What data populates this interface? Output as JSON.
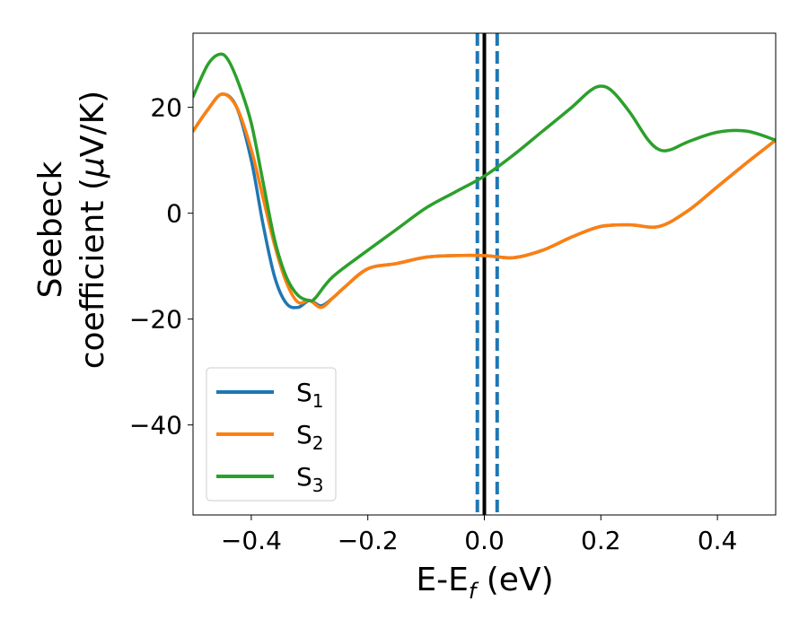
{
  "chart_data": {
    "type": "line",
    "xlabel": "E-E",
    "xlabel_sub": "f",
    "xlabel_unit": " (eV)",
    "ylabel_line1": "Seebeck",
    "ylabel_line2_prefix": "coefficient  (",
    "ylabel_mu": "μ",
    "ylabel_line2_suffix": "V/K)",
    "xlim": [
      -0.5,
      0.5
    ],
    "ylim": [
      -57,
      34
    ],
    "xticks": [
      -0.4,
      -0.2,
      0.0,
      0.2,
      0.4
    ],
    "xtick_labels": [
      "−0.4",
      "−0.2",
      "0.0",
      "0.2",
      "0.4"
    ],
    "yticks": [
      -40,
      -20,
      0,
      20
    ],
    "ytick_labels": [
      "−40",
      "−20",
      "0",
      "20"
    ],
    "grid": false,
    "legend_position": "lower-left",
    "vertical_lines": [
      {
        "x": 0.0,
        "style": "solid",
        "color": "#000000"
      },
      {
        "x": -0.012,
        "style": "dashed",
        "color": "#1f77b4"
      },
      {
        "x": 0.022,
        "style": "dashed",
        "color": "#1f77b4"
      }
    ],
    "series": [
      {
        "name": "S",
        "sub": "1",
        "color": "#1f77b4",
        "x": [
          -0.5,
          -0.475,
          -0.45,
          -0.425,
          -0.4,
          -0.38,
          -0.36,
          -0.34,
          -0.32,
          -0.3,
          -0.28,
          -0.26,
          -0.24,
          -0.2,
          -0.15,
          -0.1,
          -0.05,
          0.0,
          0.05,
          0.1,
          0.15,
          0.2,
          0.25,
          0.3,
          0.35,
          0.4,
          0.45,
          0.5
        ],
        "y": [
          15.5,
          19.5,
          22.5,
          20,
          10,
          -2,
          -12,
          -17,
          -17.8,
          -16.5,
          -17.5,
          -16,
          -14,
          -10.5,
          -9.5,
          -8.3,
          -8,
          -8,
          -8.4,
          -7,
          -4.5,
          -2.5,
          -2.2,
          -2.5,
          0.5,
          5,
          9.5,
          13.8
        ]
      },
      {
        "name": "S",
        "sub": "2",
        "color": "#ff7f0e",
        "x": [
          -0.5,
          -0.475,
          -0.45,
          -0.425,
          -0.4,
          -0.38,
          -0.36,
          -0.34,
          -0.32,
          -0.3,
          -0.28,
          -0.26,
          -0.24,
          -0.2,
          -0.15,
          -0.1,
          -0.05,
          0.0,
          0.05,
          0.1,
          0.15,
          0.2,
          0.25,
          0.3,
          0.35,
          0.4,
          0.45,
          0.5
        ],
        "y": [
          15.5,
          19.5,
          22.5,
          20,
          12,
          3,
          -6,
          -13,
          -16.8,
          -16.5,
          -17.8,
          -16,
          -14,
          -10.5,
          -9.5,
          -8.3,
          -8,
          -8,
          -8.4,
          -7,
          -4.5,
          -2.5,
          -2.2,
          -2.5,
          0.5,
          5,
          9.5,
          13.8
        ]
      },
      {
        "name": "S",
        "sub": "3",
        "color": "#2ca02c",
        "x": [
          -0.5,
          -0.475,
          -0.455,
          -0.44,
          -0.42,
          -0.4,
          -0.38,
          -0.36,
          -0.34,
          -0.32,
          -0.3,
          -0.29,
          -0.26,
          -0.2,
          -0.15,
          -0.1,
          -0.05,
          0.0,
          0.05,
          0.1,
          0.15,
          0.18,
          0.2,
          0.22,
          0.25,
          0.28,
          0.3,
          0.32,
          0.35,
          0.4,
          0.45,
          0.5
        ],
        "y": [
          22,
          28,
          30,
          29,
          24,
          17,
          6,
          -5,
          -12,
          -15.5,
          -16.5,
          -16,
          -12,
          -7,
          -3,
          1,
          4,
          7,
          11,
          15.5,
          20,
          23,
          24,
          23,
          19,
          14,
          12,
          12,
          13.5,
          15.3,
          15.5,
          13.8
        ]
      }
    ]
  }
}
